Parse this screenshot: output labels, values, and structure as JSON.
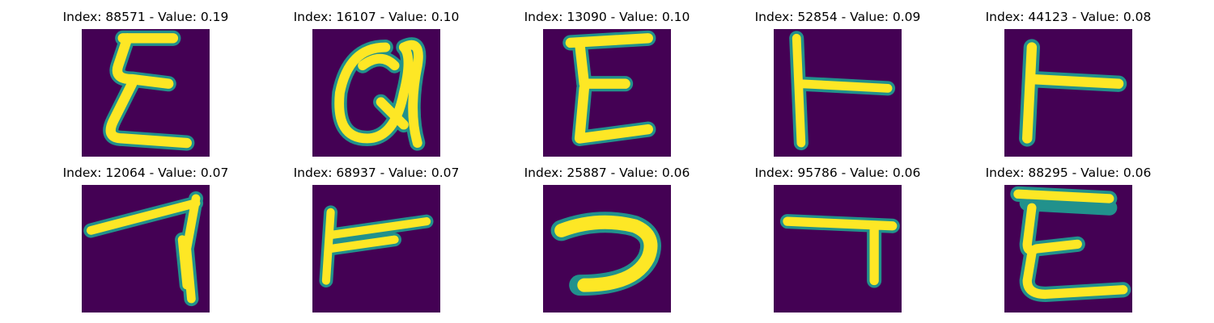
{
  "palette": {
    "background": "#440154",
    "stroke_edge": "#21918c",
    "stroke_mid": "#5ec962",
    "stroke_core": "#fde725"
  },
  "grid": [
    {
      "title": "Index: 88571 - Value: 0.19",
      "glyph": "E"
    },
    {
      "title": "Index: 16107 - Value: 0.10",
      "glyph": "@"
    },
    {
      "title": "Index: 13090 - Value: 0.10",
      "glyph": "E"
    },
    {
      "title": "Index: 52854 - Value: 0.09",
      "glyph": "T-rotated"
    },
    {
      "title": "Index: 44123 - Value: 0.08",
      "glyph": "T-rotated"
    },
    {
      "title": "Index: 12064 - Value: 0.07",
      "glyph": "7"
    },
    {
      "title": "Index: 68937 - Value: 0.07",
      "glyph": "T-rotated"
    },
    {
      "title": "Index: 25887 - Value: 0.06",
      "glyph": "7-curved"
    },
    {
      "title": "Index: 95786 - Value: 0.06",
      "glyph": "7"
    },
    {
      "title": "Index: 88295 - Value: 0.06",
      "glyph": "E"
    }
  ]
}
